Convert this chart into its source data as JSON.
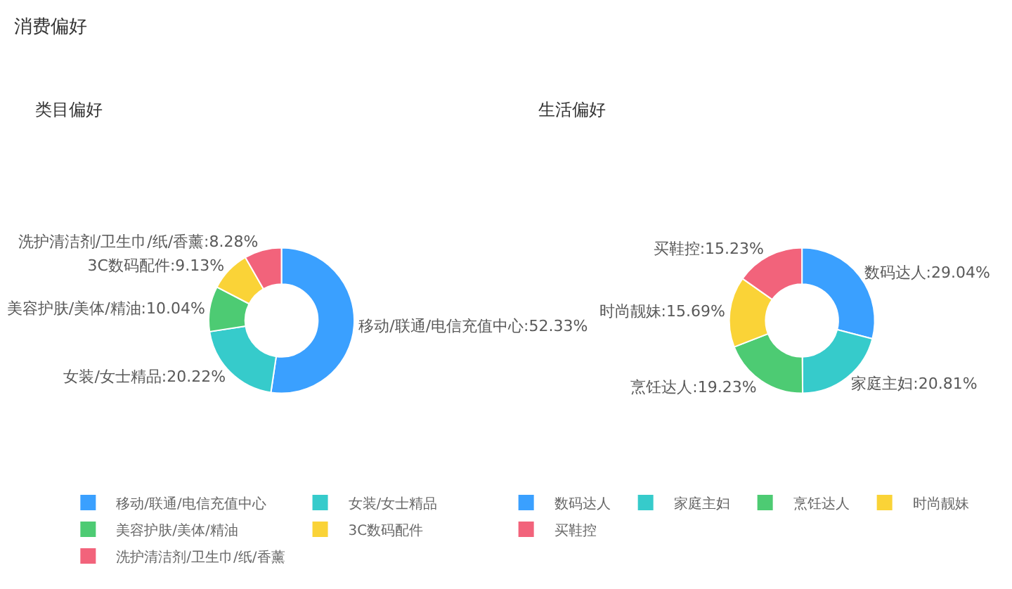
{
  "chart_data": [
    {
      "type": "other",
      "title": "消费偏好"
    },
    {
      "type": "donut",
      "title": "类目偏好",
      "categories": [
        "移动/联通/电信充值中心",
        "女装/女士精品",
        "美容护肤/美体/精油",
        "3C数码配件",
        "洗护清洁剂/卫生巾/纸/香薰"
      ],
      "values": [
        52.33,
        20.22,
        10.04,
        9.13,
        8.28
      ],
      "colors": [
        "#3aa0ff",
        "#36cbcb",
        "#4dcb73",
        "#fad337",
        "#f2637b"
      ],
      "value_labels": [
        "移动/联通/电信充值中心:52.33%",
        "女装/女士精品:20.22%",
        "美容护肤/美体/精油:10.04%",
        "3C数码配件:9.13%",
        "洗护清洁剂/卫生巾/纸/香薰:8.28%"
      ],
      "legend": "bottom"
    },
    {
      "type": "donut",
      "title": "生活偏好",
      "categories": [
        "数码达人",
        "家庭主妇",
        "烹饪达人",
        "时尚靓妹",
        "买鞋控"
      ],
      "values": [
        29.04,
        20.81,
        19.23,
        15.69,
        15.23
      ],
      "colors": [
        "#3aa0ff",
        "#36cbcb",
        "#4dcb73",
        "#fad337",
        "#f2637b"
      ],
      "value_labels": [
        "数码达人:29.04%",
        "家庭主妇:20.81%",
        "烹饪达人:19.23%",
        "时尚靓妹:15.69%",
        "买鞋控:15.23%"
      ],
      "legend": "bottom"
    }
  ]
}
